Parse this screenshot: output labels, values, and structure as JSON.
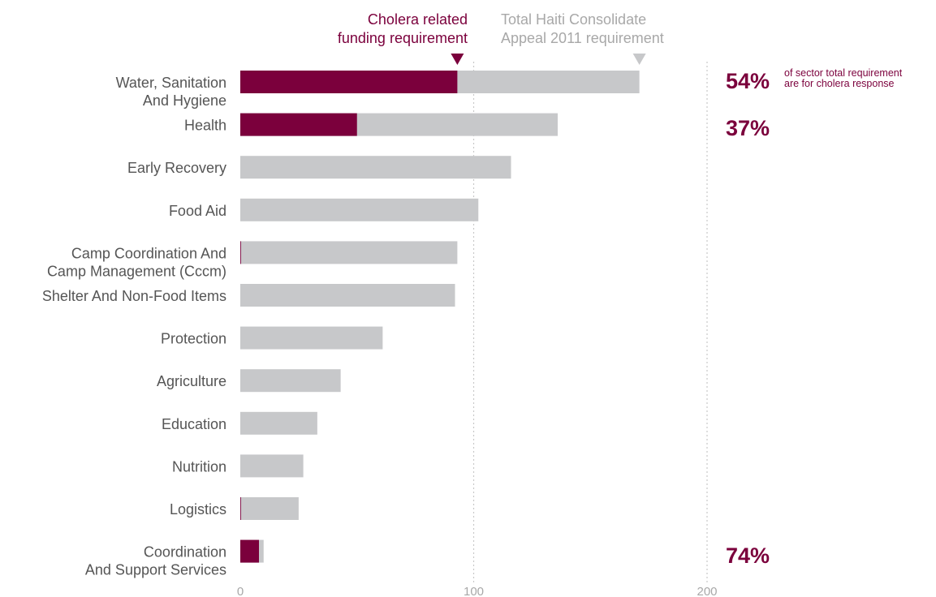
{
  "legend": {
    "cholera": [
      "Cholera related",
      "funding requirement"
    ],
    "total": [
      "Total Haiti Consolidate",
      "Appeal 2011 requirement"
    ]
  },
  "percentages": {
    "wash": "54%",
    "wash_note": [
      "of sector total requirement",
      "are for cholera response"
    ],
    "health": "37%",
    "coordination": "74%"
  },
  "colors": {
    "cholera": "#7b003c",
    "total": "#c7c8ca",
    "label": "#555555",
    "tick": "#a8a8a8",
    "gridline": "#c8c8c8"
  },
  "chart_data": {
    "type": "bar",
    "orientation": "horizontal",
    "xlim": [
      0,
      200
    ],
    "xticks": [
      "0",
      "100",
      "200"
    ],
    "gridlines_at": [
      100,
      200
    ],
    "categories": [
      [
        "Water, Sanitation",
        "And Hygiene"
      ],
      [
        "Health"
      ],
      [
        "Early Recovery"
      ],
      [
        "Food Aid"
      ],
      [
        "Camp Coordination And",
        "Camp Management (Cccm)"
      ],
      [
        "Shelter And Non-Food Items"
      ],
      [
        "Protection"
      ],
      [
        "Agriculture"
      ],
      [
        "Education"
      ],
      [
        "Nutrition"
      ],
      [
        "Logistics"
      ],
      [
        "Coordination",
        "And Support Services"
      ]
    ],
    "series": [
      {
        "name": "Cholera related funding requirement",
        "values": [
          93,
          50,
          0,
          0,
          0.3,
          0,
          0,
          0,
          0,
          0,
          0.3,
          8
        ]
      },
      {
        "name": "Total Haiti Consolidate Appeal 2011 requirement",
        "values": [
          171,
          136,
          116,
          102,
          93,
          92,
          61,
          43,
          33,
          27,
          25,
          10
        ]
      }
    ]
  }
}
